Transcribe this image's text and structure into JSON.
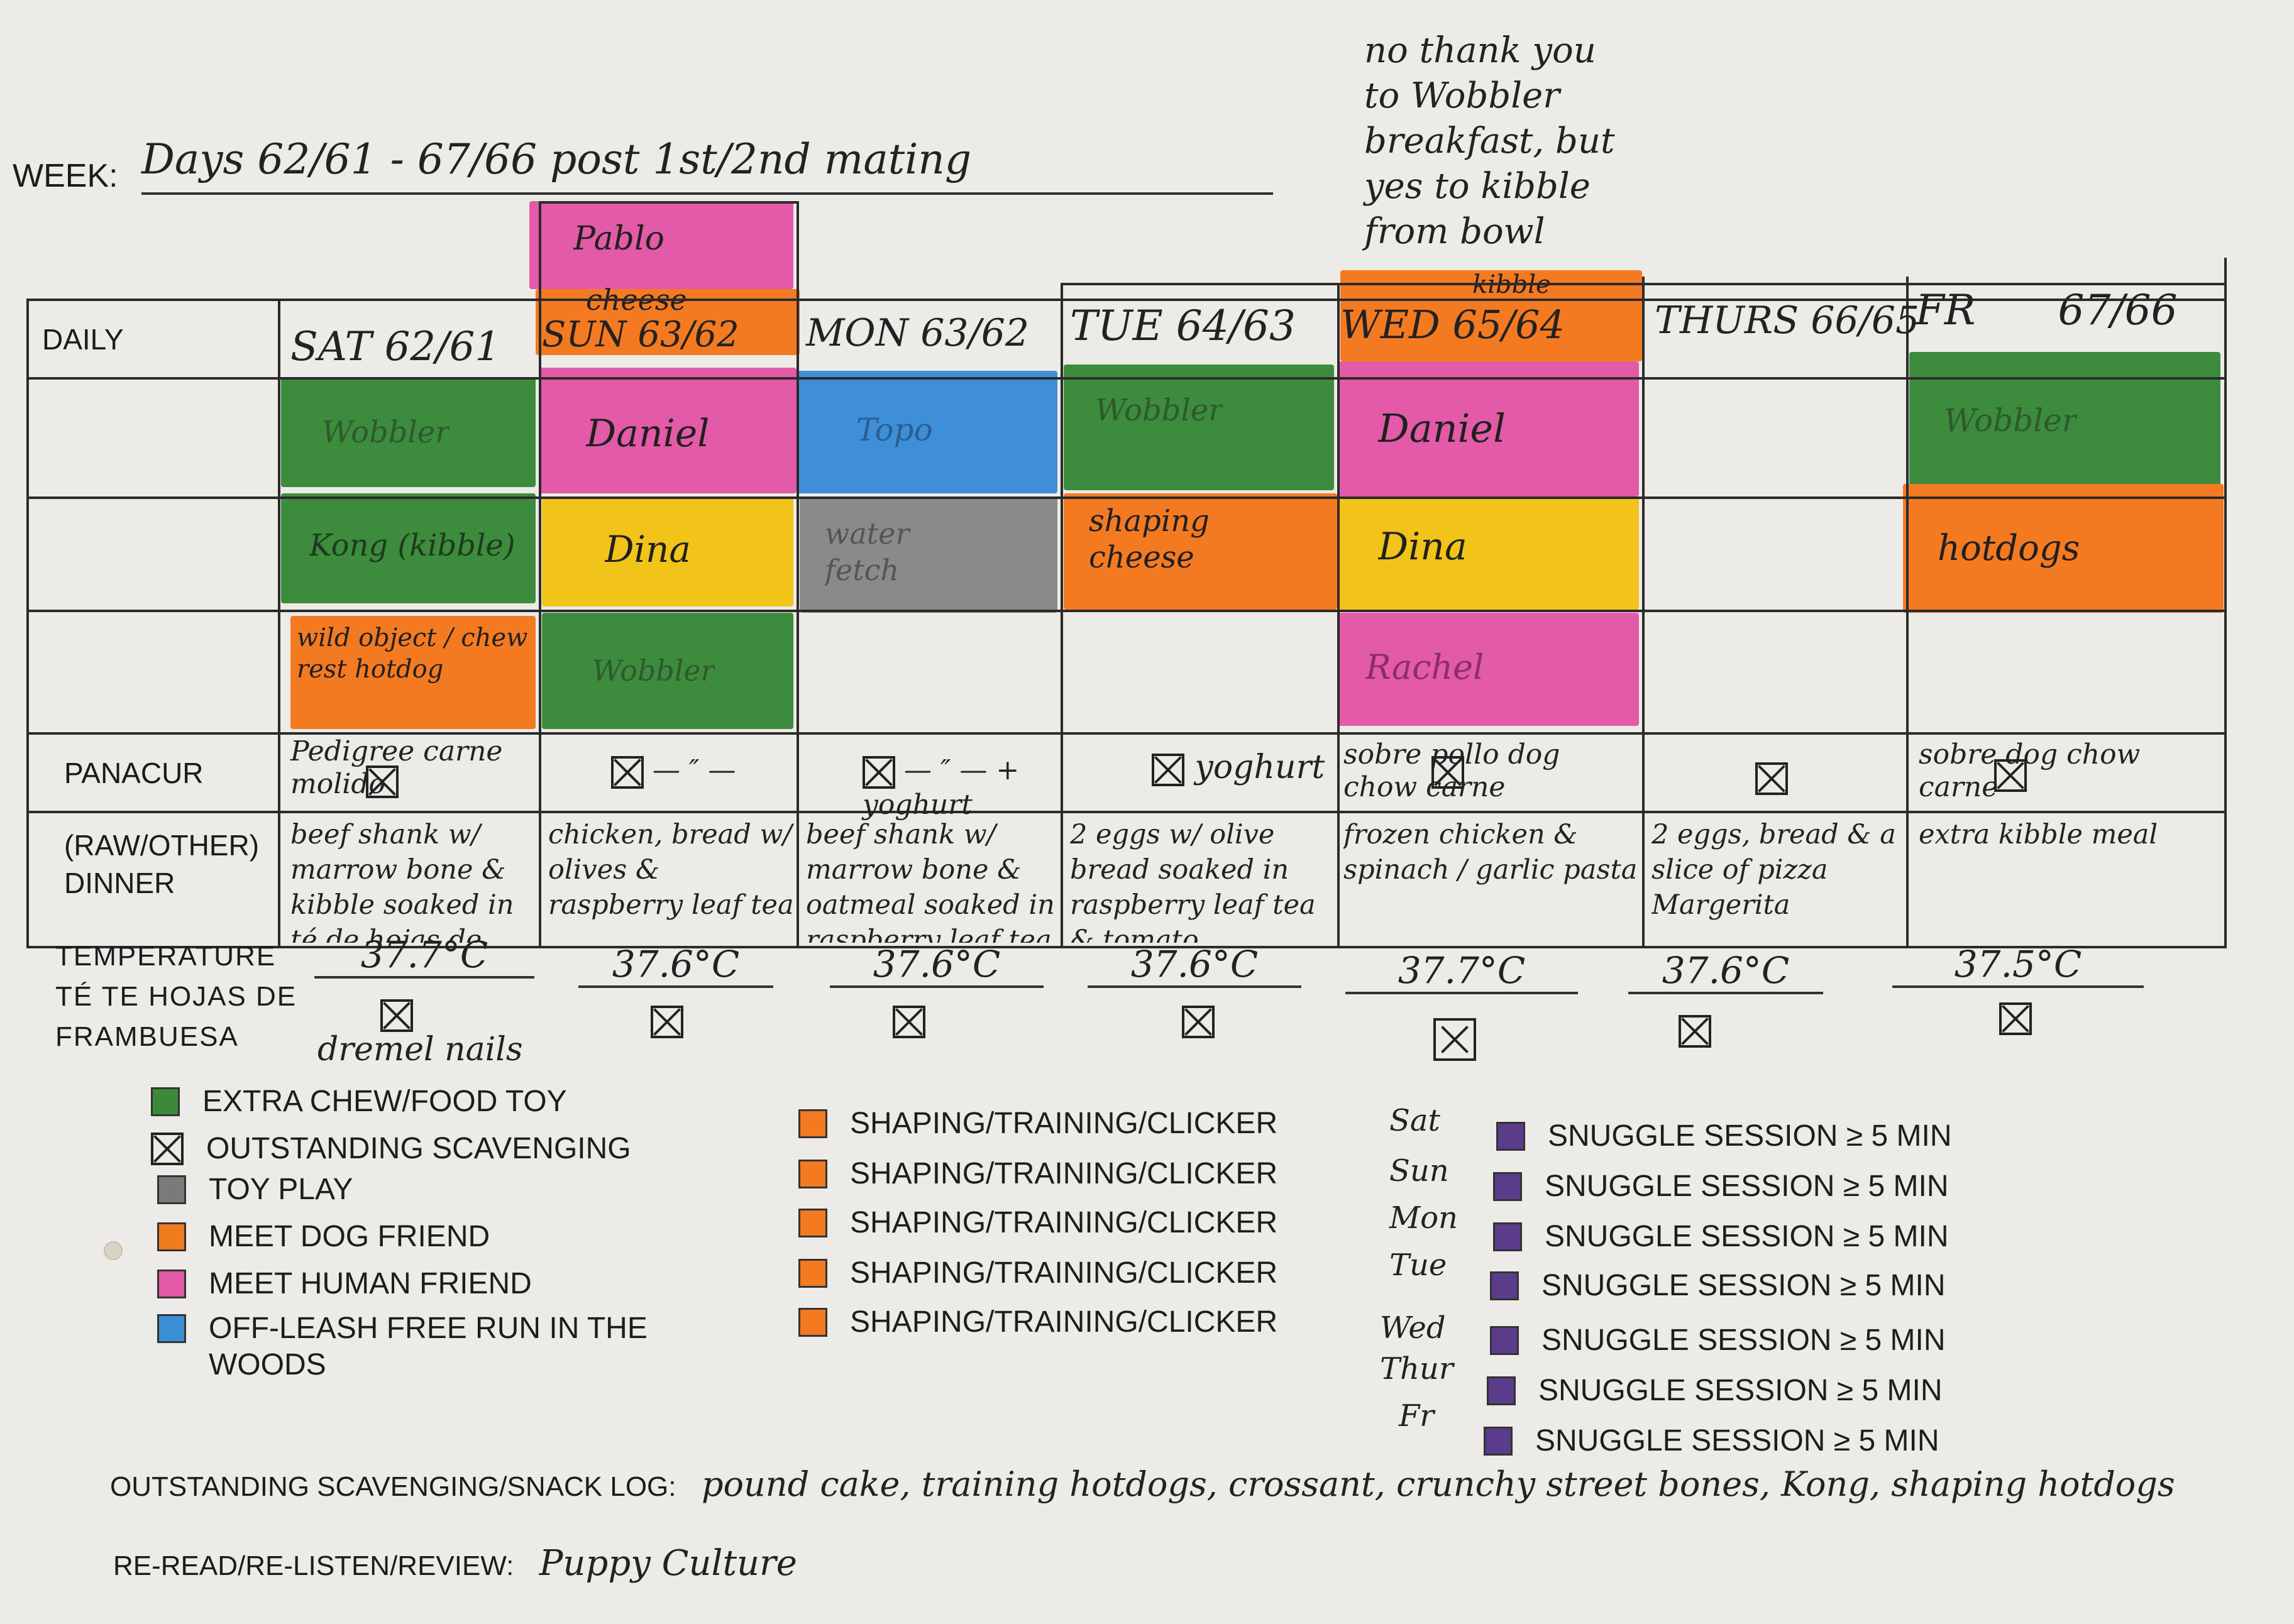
{
  "header": {
    "week_label": "WEEK:",
    "week_value": "Days 62/61 - 67/66  post 1st/2nd mating"
  },
  "wed_note": "no thank you to Wobbler breakfast, but yes to kibble from bowl",
  "row_labels": {
    "daily": "DAILY",
    "panacur": "PANACUR",
    "dinner": "(RAW/OTHER)\nDINNER"
  },
  "days": [
    {
      "key": "sat",
      "header": "SAT 62/61"
    },
    {
      "key": "sun",
      "header": "SUN 63/62"
    },
    {
      "key": "mon",
      "header": "MON 63/62"
    },
    {
      "key": "tue",
      "header": "TUE 64/63"
    },
    {
      "key": "wed",
      "header": "WED 65/64"
    },
    {
      "key": "thu",
      "header": "THURS 66/65"
    },
    {
      "key": "fri",
      "header": "FR 67/66"
    }
  ],
  "extra_cells": {
    "sun_top": "Pablo",
    "sun_cheese": "cheese",
    "wed_kibble": "kibble"
  },
  "activities": {
    "sat_1": "Wobbler",
    "sat_2": "Kong (kibble)",
    "sat_3": "wild object / chew rest hotdog",
    "sun_1": "Daniel",
    "sun_2": "Dina",
    "sun_3": "Wobbler",
    "mon_1": "Topo",
    "mon_2": "water fetch",
    "tue_1": "Wobbler",
    "tue_2": "shaping cheese",
    "wed_1": "Daniel",
    "wed_2": "Dina",
    "wed_3": "Rachel",
    "fri_1": "Wobbler",
    "fri_2": "hotdogs"
  },
  "panacur": {
    "sat": "Pedigree carne molido",
    "sun": "— ″ —",
    "mon": "— ″ — + yoghurt",
    "tue": "yoghurt",
    "wed": "sobre pollo dog chow carne",
    "thu": "",
    "fri": "sobre dog chow carne"
  },
  "dinner": {
    "sat": "beef shank w/ marrow bone & kibble soaked in té de hojas de frambuesa",
    "sun": "chicken, bread w/ olives & raspberry leaf tea",
    "mon": "beef shank w/ marrow bone & oatmeal soaked in raspberry leaf tea w/ tomato",
    "tue": "2 eggs w/ olive bread soaked in raspberry leaf tea & tomato",
    "wed": "frozen chicken & spinach / garlic pasta",
    "thu": "2 eggs, bread & a slice of pizza Margerita",
    "fri": "extra kibble meal"
  },
  "temperature": {
    "label": "TEMPERATURE\nTÉ TE HOJAS DE\nFRAMBUESA",
    "values": [
      "37.7°C",
      "37.6°C",
      "37.6°C",
      "37.6°C",
      "37.7°C",
      "37.6°C",
      "37.5°C"
    ],
    "sat_note": "dremel nails"
  },
  "legend_left": [
    {
      "label": "EXTRA CHEW/FOOD TOY",
      "color": "#3b8a3a",
      "icon": "green-square"
    },
    {
      "label": "OUTSTANDING SCAVENGING",
      "color": "none",
      "icon": "x-box-icon"
    },
    {
      "label": "TOY PLAY",
      "color": "#7a7a7a",
      "icon": "gray-square"
    },
    {
      "label": "MEET DOG FRIEND",
      "color": "#f07c1e",
      "icon": "orange-square"
    },
    {
      "label": "MEET HUMAN FRIEND",
      "color": "#e35aa8",
      "icon": "pink-square"
    },
    {
      "label": "OFF-LEASH FREE RUN IN THE\nWOODS",
      "color": "#3a8fd4",
      "icon": "blue-square"
    }
  ],
  "legend_mid": [
    "SHAPING/TRAINING/CLICKER",
    "SHAPING/TRAINING/CLICKER",
    "SHAPING/TRAINING/CLICKER",
    "SHAPING/TRAINING/CLICKER",
    "SHAPING/TRAINING/CLICKER"
  ],
  "legend_right": [
    {
      "day": "Sat",
      "label": "SNUGGLE SESSION ≥ 5 MIN"
    },
    {
      "day": "Sun",
      "label": "SNUGGLE SESSION ≥ 5 MIN"
    },
    {
      "day": "Mon",
      "label": "SNUGGLE SESSION ≥ 5 MIN"
    },
    {
      "day": "Tue",
      "label": "SNUGGLE SESSION ≥ 5 MIN"
    },
    {
      "day": "Wed",
      "label": "SNUGGLE SESSION ≥ 5 MIN"
    },
    {
      "day": "Thur",
      "label": "SNUGGLE SESSION ≥ 5 MIN"
    },
    {
      "day": "Fr",
      "label": "SNUGGLE SESSION ≥ 5 MIN"
    }
  ],
  "colors": {
    "green": "#3d8b3d",
    "pink": "#e35aa8",
    "orange": "#f47a22",
    "yellow": "#f2c318",
    "blue": "#3e8fd8",
    "gray": "#8a8a8a",
    "purple": "#5a3c8a"
  },
  "logs": {
    "scavenging_label": "OUTSTANDING SCAVENGING/SNACK LOG:",
    "scavenging_value": "pound cake, training hotdogs, crossant, crunchy street bones, Kong, shaping hotdogs",
    "review_label": "RE-READ/RE-LISTEN/REVIEW:",
    "review_value": "Puppy Culture"
  }
}
